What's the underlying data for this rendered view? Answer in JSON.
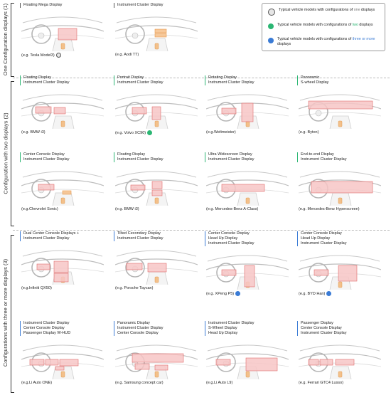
{
  "sections": {
    "one": "One Configuration displays  (1)",
    "two": "Configuration with two displays  (2)",
    "three": "Configurations with three or more displays  (3)"
  },
  "legend": {
    "one_pre": "Typical vehicle models with configurations of ",
    "one_em": "one",
    "one_post": " displays",
    "two_pre": "Typical vehicle models with configurations of ",
    "two_em": "two",
    "two_post": " displays",
    "three_pre": "Typical vehicle models with configurations of ",
    "three_em": "three or more",
    "three_post": " displays"
  },
  "colors": {
    "gray": "#cccccc",
    "green": "#2bb673",
    "blue": "#3a7bd5",
    "display_fill": "#f7c6c6",
    "display_stroke": "#e06b6b"
  },
  "cells": [
    {
      "lines": [
        "Floating Mega Display"
      ],
      "caption": "(e.g. Tesla Model3)",
      "marker": "gray",
      "accent": "gray"
    },
    {
      "lines": [
        "Instrument Cluster Display"
      ],
      "caption": "(e.g. Aodi TT)",
      "marker": "",
      "accent": "gray"
    },
    {
      "lines": [
        "Floating Display",
        "Instrument Cluster Display"
      ],
      "caption": "(e.g. BMW i3)",
      "marker": "",
      "accent": "green"
    },
    {
      "lines": [
        "Portrait Display",
        "Instrument Cluster Display"
      ],
      "caption": "(e.g. Volvo XC90)",
      "marker": "green",
      "accent": "green"
    },
    {
      "lines": [
        "Rotating Display",
        "Instrument Cluster Display"
      ],
      "caption": "(e.g.Weltmeister)",
      "marker": "",
      "accent": "green"
    },
    {
      "lines": [
        "Panoramic",
        "S-wheel Display"
      ],
      "caption": "(e.g. Byton)",
      "marker": "",
      "accent": "green"
    },
    {
      "lines": [
        "Center Console Display",
        "Instrument Cluster Display"
      ],
      "caption": "(e.g.Chevrolet Sonic)",
      "marker": "",
      "accent": "green"
    },
    {
      "lines": [
        "Floating Display",
        "Instrument Cluster Display"
      ],
      "caption": "(e.g. BMW i3)",
      "marker": "",
      "accent": "green"
    },
    {
      "lines": [
        "Ultra Widescreen Display",
        "Instrument Cluster Display"
      ],
      "caption": "(e.g. Mercedes-Benz A-Class)",
      "marker": "",
      "accent": "green"
    },
    {
      "lines": [
        "End-to-end Display",
        "Instrument Cluster Display"
      ],
      "caption": "(e.g. Mercedes-Benz Hyperscreen)",
      "marker": "",
      "accent": "green"
    },
    {
      "lines": [
        "Dual Center Console Displays  +",
        "Instrument Cluster Display"
      ],
      "caption": "(e.g.Infiniti QX50)",
      "marker": "",
      "accent": "blue"
    },
    {
      "lines": [
        "Tilted Cecondary Display",
        "Instrument Cluster Display"
      ],
      "caption": "(e.g. Porsche Taycan)",
      "marker": "",
      "accent": "blue"
    },
    {
      "lines": [
        "Center Console Display",
        "Head Up Display",
        "Instrument Cluster Display"
      ],
      "caption": "(e.g. XPeng P5)",
      "marker": "blue",
      "accent": "blue"
    },
    {
      "lines": [
        "Center Console Display",
        "Head Up Display",
        "Instrument Cluster Display"
      ],
      "caption": "(e.g. BYD Han)",
      "marker": "blue",
      "accent": "blue"
    },
    {
      "lines": [
        "Instrument Cluster Display",
        "Center Console Display",
        "Passenger Display      W-HUD"
      ],
      "caption": "(e.g.Li Auto ONE)",
      "marker": "",
      "accent": "blue"
    },
    {
      "lines": [
        "Panoramic Display",
        "Instrument Cluster Display",
        "Center Console Display"
      ],
      "caption": "(e.g. Samsung concept car)",
      "marker": "",
      "accent": "blue"
    },
    {
      "lines": [
        "Instrument Cluster Display",
        "S-Wheel Display",
        "Head Up Display"
      ],
      "caption": "(e.g.Li Auto L9)",
      "marker": "",
      "accent": "blue"
    },
    {
      "lines": [
        "Passenger Display",
        "Center Console Display",
        "Instrument Cluster Display"
      ],
      "caption": "(e.g. Ferrari GTC4 Lusso)",
      "marker": "",
      "accent": "blue"
    }
  ]
}
